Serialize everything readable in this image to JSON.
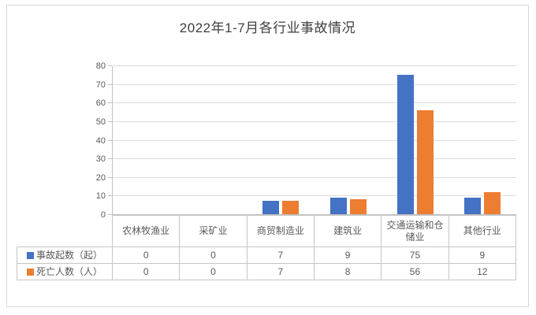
{
  "title": "2022年1-7月各行业事故情况",
  "chart_data": {
    "type": "bar",
    "title": "2022年1-7月各行业事故情况",
    "categories": [
      "农林牧渔业",
      "采矿业",
      "商贸制造业",
      "建筑业",
      "交通运输和仓储业",
      "其他行业"
    ],
    "series": [
      {
        "name": "事故起数（起）",
        "values": [
          0,
          0,
          7,
          9,
          75,
          9
        ],
        "color": "#4472C4"
      },
      {
        "name": "死亡人数（人）",
        "values": [
          0,
          0,
          7,
          8,
          56,
          12
        ],
        "color": "#ED7D31"
      }
    ],
    "ylim": [
      0,
      80
    ],
    "ytick_step": 10,
    "yticks": [
      0,
      10,
      20,
      30,
      40,
      50,
      60,
      70,
      80
    ],
    "grid": true,
    "xlabel": "",
    "ylabel": "",
    "legend_position": "data-table-row-headers"
  },
  "colors": {
    "series_accident": "#4472C4",
    "series_death": "#ED7D31",
    "gridline": "#DCDCDC",
    "axis": "#BFBFBF",
    "table_border": "#C6C6C6",
    "text": "#595959",
    "title_text": "#3F3F3F",
    "frame_border": "#D8D8D8"
  }
}
